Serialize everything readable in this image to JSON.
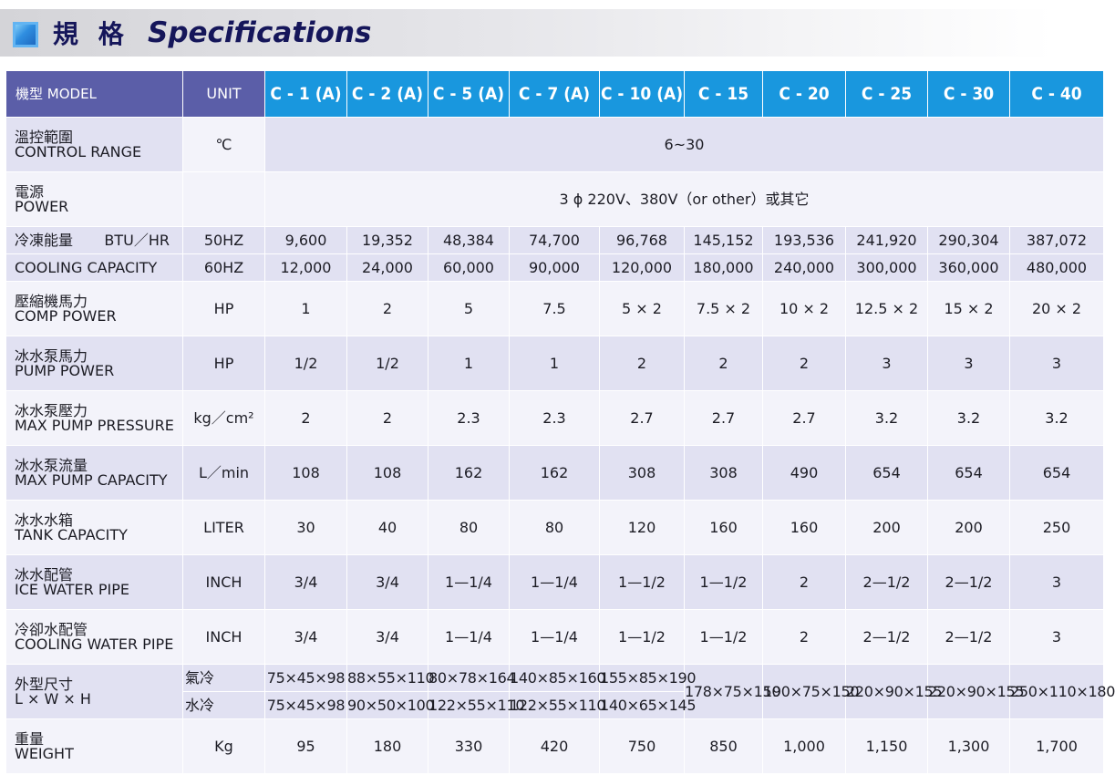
{
  "banner": {
    "title_cn": "規 格",
    "title_en": "Specifications"
  },
  "table": {
    "header": {
      "model_label": "機型 MODEL",
      "unit_label": "UNIT",
      "models": [
        "C - 1 (A)",
        "C - 2 (A)",
        "C - 5 (A)",
        "C - 7 (A)",
        "C - 10 (A)",
        "C - 15",
        "C - 20",
        "C - 25",
        "C - 30",
        "C - 40"
      ]
    },
    "control_range": {
      "cn": "溫控範圍",
      "en": "CONTROL RANGE",
      "unit": "℃",
      "value": "6~30"
    },
    "power": {
      "cn": "電源",
      "en": "POWER",
      "unit": "",
      "value": "3 ϕ 220V、380V（or other）或其它"
    },
    "cooling": {
      "cn": "冷凍能量",
      "cn_unit": "BTU／HR",
      "en": "COOLING CAPACITY",
      "unit_50": "50HZ",
      "unit_60": "60HZ",
      "values_50": [
        "9,600",
        "19,352",
        "48,384",
        "74,700",
        "96,768",
        "145,152",
        "193,536",
        "241,920",
        "290,304",
        "387,072"
      ],
      "values_60": [
        "12,000",
        "24,000",
        "60,000",
        "90,000",
        "120,000",
        "180,000",
        "240,000",
        "300,000",
        "360,000",
        "480,000"
      ]
    },
    "comp_power": {
      "cn": "壓縮機馬力",
      "en": "COMP POWER",
      "unit": "HP",
      "values": [
        "1",
        "2",
        "5",
        "7.5",
        "5 × 2",
        "7.5 × 2",
        "10 × 2",
        "12.5 × 2",
        "15 × 2",
        "20 × 2"
      ]
    },
    "pump_power": {
      "cn": "冰水泵馬力",
      "en": "PUMP POWER",
      "unit": "HP",
      "values": [
        "1/2",
        "1/2",
        "1",
        "1",
        "2",
        "2",
        "2",
        "3",
        "3",
        "3"
      ]
    },
    "pump_pressure": {
      "cn": "冰水泵壓力",
      "en": "MAX PUMP PRESSURE",
      "unit": "kg／cm²",
      "values": [
        "2",
        "2",
        "2.3",
        "2.3",
        "2.7",
        "2.7",
        "2.7",
        "3.2",
        "3.2",
        "3.2"
      ]
    },
    "pump_capacity": {
      "cn": "冰水泵流量",
      "en": "MAX PUMP CAPACITY",
      "unit": "L／min",
      "values": [
        "108",
        "108",
        "162",
        "162",
        "308",
        "308",
        "490",
        "654",
        "654",
        "654"
      ]
    },
    "tank_capacity": {
      "cn": "冰水水箱",
      "en": "TANK CAPACITY",
      "unit": "LITER",
      "values": [
        "30",
        "40",
        "80",
        "80",
        "120",
        "160",
        "160",
        "200",
        "200",
        "250"
      ]
    },
    "ice_water_pipe": {
      "cn": "冰水配管",
      "en": "ICE WATER PIPE",
      "unit": "INCH",
      "values": [
        "3/4",
        "3/4",
        "1—1/4",
        "1—1/4",
        "1—1/2",
        "1—1/2",
        "2",
        "2—1/2",
        "2—1/2",
        "3"
      ]
    },
    "cooling_water_pipe": {
      "cn": "冷卻水配管",
      "en": "COOLING WATER PIPE",
      "unit": "INCH",
      "values": [
        "3/4",
        "3/4",
        "1—1/4",
        "1—1/4",
        "1—1/2",
        "1—1/2",
        "2",
        "2—1/2",
        "2—1/2",
        "3"
      ]
    },
    "dimensions": {
      "cn": "外型尺寸",
      "en": "L × W × H",
      "air_label": "氣冷",
      "water_label": "水冷",
      "air_values": [
        "75×45×98",
        "88×55×110",
        "80×78×164",
        "140×85×160",
        "155×85×190"
      ],
      "water_values": [
        "75×45×98",
        "90×50×100",
        "122×55×110",
        "122×55×110",
        "140×65×145"
      ],
      "shared_values": [
        "178×75×150",
        "190×75×150",
        "220×90×155",
        "220×90×155",
        "250×110×180"
      ]
    },
    "weight": {
      "cn": "重量",
      "en": "WEIGHT",
      "unit": "Kg",
      "values": [
        "95",
        "180",
        "330",
        "420",
        "750",
        "850",
        "1,000",
        "1,150",
        "1,300",
        "1,700"
      ]
    }
  }
}
